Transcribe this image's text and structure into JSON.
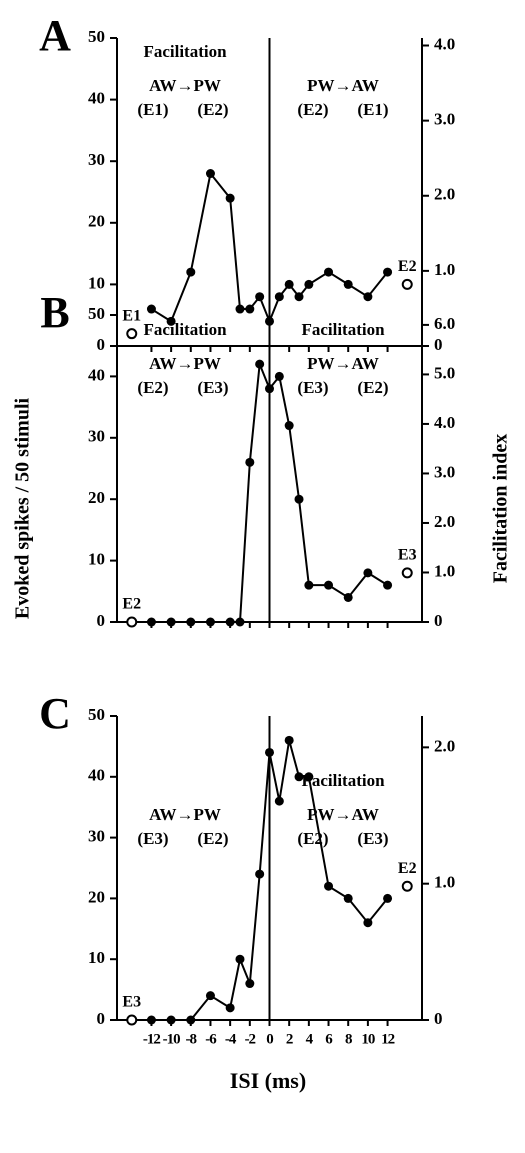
{
  "chart_data": [
    {
      "type": "line",
      "panel": "A",
      "x": [
        -12,
        -10,
        -8,
        -6,
        -4,
        -3,
        -2,
        -1,
        0,
        1,
        2,
        3,
        4,
        6,
        8,
        10,
        12
      ],
      "values": [
        6,
        4,
        12,
        28,
        24,
        6,
        6,
        8,
        4,
        8,
        10,
        8,
        10,
        12,
        10,
        8,
        12
      ],
      "color": "#000000",
      "controls": [
        {
          "label": "E1",
          "x": -14,
          "value": 2
        },
        {
          "label": "E2",
          "x": 14,
          "value": 10
        }
      ],
      "left_note": {
        "effect": "Facilitation",
        "direction": "AW→PW",
        "first": "(E1)",
        "second": "(E2)"
      },
      "right_note": {
        "direction": "PW→AW",
        "first": "(E2)",
        "second": "(E1)"
      },
      "xlim": [
        -15.5,
        15.5
      ],
      "xticks": [
        -12,
        -10,
        -8,
        -6,
        -4,
        -2,
        0,
        2,
        4,
        6,
        8,
        10,
        12
      ],
      "ylim": [
        0,
        50
      ],
      "yticks": [
        0,
        10,
        20,
        30,
        40,
        50
      ],
      "y2lim": [
        0,
        4.1
      ],
      "y2ticks": [
        0,
        {
          "value": 1,
          "label": "1.0"
        },
        {
          "value": 2,
          "label": "2.0"
        },
        {
          "value": 3,
          "label": "3.0"
        },
        {
          "value": 4,
          "label": "4.0"
        }
      ]
    },
    {
      "type": "line",
      "panel": "B",
      "x": [
        -12,
        -10,
        -8,
        -6,
        -4,
        -3,
        -2,
        -1,
        0,
        1,
        2,
        3,
        4,
        6,
        8,
        10,
        12
      ],
      "values": [
        0,
        0,
        0,
        0,
        0,
        0,
        26,
        42,
        38,
        40,
        32,
        20,
        6,
        6,
        4,
        8,
        6
      ],
      "color": "#000000",
      "controls": [
        {
          "label": "E2",
          "x": -14,
          "value": 0
        },
        {
          "label": "E3",
          "x": 14,
          "value": 8
        }
      ],
      "left_note": {
        "effect": "Facilitation",
        "direction": "AW→PW",
        "first": "(E2)",
        "second": "(E3)"
      },
      "right_note": {
        "effect": "Facilitation",
        "direction": "PW→AW",
        "first": "(E3)",
        "second": "(E2)"
      },
      "ylabel": "Evoked spikes / 50 stimuli",
      "y2label": "Facilitation index",
      "xlim": [
        -15.5,
        15.5
      ],
      "xticks": [
        -12,
        -10,
        -8,
        -6,
        -4,
        -2,
        0,
        2,
        4,
        6,
        8,
        10,
        12
      ],
      "ylim": [
        0,
        50
      ],
      "yticks": [
        0,
        10,
        20,
        30,
        40,
        50
      ],
      "y2lim": [
        0,
        6.2
      ],
      "y2ticks": [
        0,
        {
          "value": 1,
          "label": "1.0"
        },
        {
          "value": 2,
          "label": "2.0"
        },
        {
          "value": 3,
          "label": "3.0"
        },
        {
          "value": 4,
          "label": "4.0"
        },
        {
          "value": 5,
          "label": "5.0"
        },
        {
          "value": 6,
          "label": "6.0"
        }
      ]
    },
    {
      "type": "line",
      "panel": "C",
      "x": [
        -12,
        -10,
        -8,
        -6,
        -4,
        -3,
        -2,
        -1,
        0,
        1,
        2,
        3,
        4,
        6,
        8,
        10,
        12
      ],
      "values": [
        0,
        0,
        0,
        4,
        2,
        10,
        6,
        24,
        44,
        36,
        46,
        40,
        40,
        22,
        20,
        16,
        20
      ],
      "color": "#000000",
      "controls": [
        {
          "label": "E3",
          "x": -14,
          "value": 0
        },
        {
          "label": "E2",
          "x": 14,
          "value": 22
        }
      ],
      "left_note": {
        "direction": "AW→PW",
        "first": "(E3)",
        "second": "(E2)"
      },
      "right_note": {
        "effect": "Facilitation",
        "direction": "PW→AW",
        "first": "(E2)",
        "second": "(E3)"
      },
      "xlabel": "ISI (ms)",
      "xlim": [
        -15.5,
        15.5
      ],
      "xticks": [
        -12,
        -10,
        -8,
        -6,
        -4,
        -2,
        0,
        2,
        4,
        6,
        8,
        10,
        12
      ],
      "ylim": [
        0,
        50
      ],
      "yticks": [
        0,
        10,
        20,
        30,
        40,
        50
      ],
      "y2lim": [
        0,
        2.23
      ],
      "y2ticks": [
        0,
        {
          "value": 1,
          "label": "1.0"
        },
        {
          "value": 2,
          "label": "2.0"
        }
      ]
    }
  ]
}
